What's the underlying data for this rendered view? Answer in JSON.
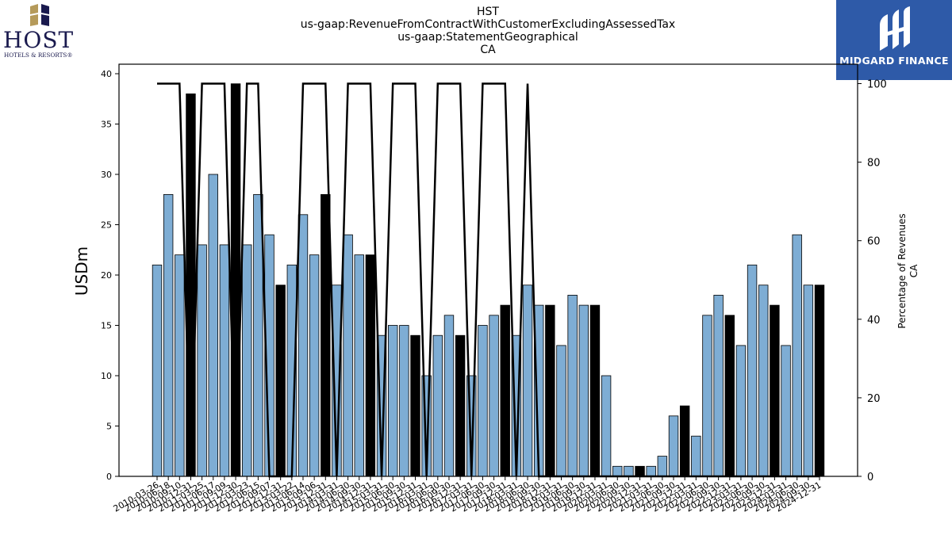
{
  "header": {
    "title_lines": [
      "HST",
      "us-gaap:RevenueFromContractWithCustomerExcludingAssessedTax",
      "us-gaap:StatementGeographical",
      "CA"
    ]
  },
  "logos": {
    "left_logo": {
      "name": "host-hotels-logo",
      "word": "HOST",
      "sub": "HOTELS & RESORTS®"
    },
    "right_logo": {
      "name": "midgard-finance-logo",
      "text": "MIDGARD FINANCE"
    }
  },
  "colors": {
    "bar_default": "#7eadd4",
    "bar_highlight": "#000000",
    "line": "#000000",
    "brand_blue": "#2e5aa8"
  },
  "chart_data": {
    "type": "bar",
    "title": "HST\nus-gaap:RevenueFromContractWithCustomerExcludingAssessedTax\nus-gaap:StatementGeographical\nCA",
    "ylabel": "USDm",
    "y2label": [
      "Percentage of Revenues",
      "CA"
    ],
    "ylim": [
      0,
      40
    ],
    "y2lim": [
      0,
      100
    ],
    "yticks": [
      0,
      5,
      10,
      15,
      20,
      25,
      30,
      35,
      40
    ],
    "y2ticks": [
      0,
      20,
      40,
      60,
      80,
      100
    ],
    "categories": [
      "2010-03-26",
      "2010-06-18",
      "2010-09-10",
      "2010-12-31",
      "2011-03-25",
      "2011-06-17",
      "2011-09-09",
      "2011-12-30",
      "2012-03-23",
      "2012-06-15",
      "2012-09-07",
      "2012-12-31",
      "2013-03-22",
      "2013-06-14",
      "2013-09-06",
      "2013-12-31",
      "2014-03-31",
      "2014-06-30",
      "2014-09-30",
      "2014-12-31",
      "2015-03-31",
      "2015-06-30",
      "2015-09-30",
      "2015-12-31",
      "2016-03-31",
      "2016-06-30",
      "2016-09-30",
      "2016-12-31",
      "2017-03-31",
      "2017-06-30",
      "2017-09-30",
      "2017-12-31",
      "2018-03-31",
      "2018-06-30",
      "2018-09-30",
      "2018-12-31",
      "2019-03-31",
      "2019-06-30",
      "2019-09-30",
      "2019-12-31",
      "2020-03-31",
      "2020-06-30",
      "2020-09-30",
      "2020-12-31",
      "2021-03-31",
      "2021-06-30",
      "2021-09-30",
      "2021-12-31",
      "2022-03-31",
      "2022-06-30",
      "2022-09-30",
      "2022-12-31",
      "2023-03-31",
      "2023-06-30",
      "2023-09-30",
      "2023-12-31",
      "2024-03-31",
      "2024-06-30",
      "2024-09-30",
      "2024-12-31"
    ],
    "xtick_labels_shown": [
      "2010-03-26",
      "2010-06-18",
      "2010-09-10",
      "2010-12-31",
      "2011-03-25",
      "2011-06-17",
      "2011-09-09",
      "2011-12-30",
      "2012-03-23",
      "2012-06-15",
      "2012-09-07",
      "2012-12-31",
      "2013-03-22",
      "2013-06-14",
      "2013-09-06",
      "2013-12-31",
      "2014-03-31",
      "2014-06-30",
      "2014-09-30",
      "2014-12-31",
      "2015-03-31",
      "2015-06-30",
      "2015-09-30",
      "2015-12-31",
      "2016-03-31",
      "2016-06-30",
      "2016-09-30",
      "2016-12-31",
      "2017-03-31",
      "2017-06-30",
      "2017-09-30",
      "2017-12-31",
      "2018-03-31",
      "2018-06-30",
      "2018-09-30",
      "2018-12-31",
      "2019-03-31",
      "2019-06-30",
      "2019-09-30",
      "2019-12-31",
      "2020-03-31",
      "2020-06-30",
      "2020-09-30",
      "2020-12-31",
      "2021-03-31",
      "2021-06-30",
      "2021-09-30",
      "2021-12-31",
      "2022-03-31",
      "2022-06-30",
      "2022-09-30",
      "2022-12-31",
      "2023-03-31",
      "2023-06-30",
      "2023-09-30",
      "2023-12-31",
      "2024-03-31",
      "2024-06-30",
      "2024-09-30",
      "2024-12-31"
    ],
    "series": [
      {
        "kind": "bar",
        "values": [
          21,
          28,
          22,
          38,
          23,
          30,
          23,
          39,
          23,
          28,
          24,
          19,
          21,
          26,
          22,
          28,
          19,
          24,
          22,
          22,
          14,
          15,
          15,
          14,
          10,
          14,
          16,
          14,
          10,
          15,
          16,
          17,
          14,
          19,
          17,
          17,
          13,
          18,
          17,
          17,
          10,
          1,
          1,
          1,
          1,
          2,
          6,
          7,
          4,
          16,
          18,
          16,
          13,
          21,
          19,
          17,
          13,
          24,
          19,
          19
        ],
        "highlight_fourth_quarter": [
          false,
          false,
          false,
          true,
          false,
          false,
          false,
          true,
          false,
          false,
          false,
          true,
          false,
          false,
          false,
          true,
          false,
          false,
          false,
          true,
          false,
          false,
          false,
          true,
          false,
          false,
          false,
          true,
          false,
          false,
          false,
          true,
          false,
          false,
          false,
          true,
          false,
          false,
          false,
          true,
          false,
          false,
          false,
          true,
          false,
          false,
          false,
          true,
          false,
          false,
          false,
          true,
          false,
          false,
          false,
          true,
          false,
          false,
          false,
          true
        ]
      },
      {
        "kind": "line",
        "axis": "right",
        "values": [
          100,
          100,
          100,
          0,
          100,
          100,
          100,
          0,
          100,
          100,
          0,
          0,
          0,
          100,
          100,
          100,
          0,
          100,
          100,
          100,
          0,
          100,
          100,
          100,
          0,
          100,
          100,
          100,
          0,
          100,
          100,
          100,
          0,
          100,
          0,
          0,
          0,
          0,
          0,
          0,
          0,
          0,
          0,
          0,
          0,
          0,
          0,
          0,
          0,
          0,
          0,
          0,
          0,
          0,
          0,
          0,
          0,
          0,
          0,
          0
        ]
      }
    ],
    "grid": false,
    "legend": "none"
  }
}
